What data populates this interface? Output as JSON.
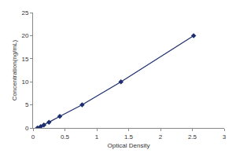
{
  "chart_data": {
    "type": "line",
    "x": [
      0.07,
      0.12,
      0.17,
      0.25,
      0.42,
      0.77,
      1.38,
      2.52
    ],
    "values": [
      0,
      0.31,
      0.625,
      1.25,
      2.5,
      5,
      10,
      20
    ],
    "color": "#1c2e6e",
    "marker": "diamond",
    "xlabel": "Optical Density",
    "ylabel": "Concentration(ng/mL)",
    "xlim": [
      0,
      3
    ],
    "xticks": [
      0,
      0.5,
      1,
      1.5,
      2,
      2.5,
      3
    ],
    "ylim": [
      0,
      25
    ],
    "yticks": [
      0,
      5,
      10,
      15,
      20,
      25
    ],
    "grid": false
  }
}
